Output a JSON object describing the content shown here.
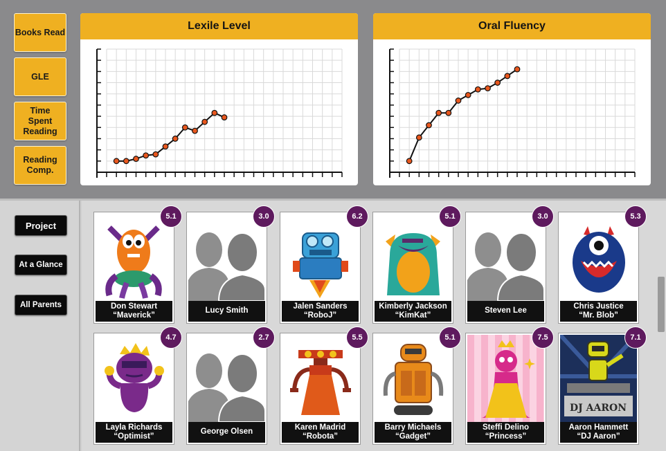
{
  "metrics": [
    {
      "label": "Books Read"
    },
    {
      "label": "GLE"
    },
    {
      "label": "Time Spent Reading"
    },
    {
      "label": "Reading Comp."
    }
  ],
  "charts": {
    "lexile": {
      "title": "Lexile Level"
    },
    "fluency": {
      "title": "Oral Fluency"
    }
  },
  "chart_data": [
    {
      "type": "line",
      "title": "Lexile Level",
      "x": [
        1,
        2,
        3,
        4,
        5,
        6,
        7,
        8,
        9,
        10,
        11,
        12
      ],
      "y": [
        1.0,
        1.0,
        1.2,
        1.5,
        1.6,
        2.3,
        3.0,
        4.0,
        3.7,
        4.5,
        5.3,
        4.9
      ],
      "ylim": [
        0,
        11
      ],
      "xlim": [
        0,
        24
      ],
      "grid": true,
      "color": "#e8571e"
    },
    {
      "type": "line",
      "title": "Oral Fluency",
      "x": [
        1,
        2,
        3,
        4,
        5,
        6,
        7,
        8,
        9,
        10,
        11,
        12
      ],
      "y": [
        1.0,
        3.1,
        4.2,
        5.3,
        5.3,
        6.4,
        6.9,
        7.4,
        7.5,
        8.0,
        8.6,
        9.2
      ],
      "ylim": [
        0,
        11
      ],
      "xlim": [
        0,
        24
      ],
      "grid": true,
      "color": "#e8571e"
    }
  ],
  "nav": [
    {
      "label": "Project"
    },
    {
      "label": "At a Glance"
    },
    {
      "label": "All Parents"
    }
  ],
  "students": [
    {
      "name": "Don Stewart",
      "nickname": "“Maverick”",
      "score": "5.1",
      "avatar": "orange-monster"
    },
    {
      "name": "Lucy Smith",
      "nickname": "",
      "score": "3.0",
      "avatar": "placeholder"
    },
    {
      "name": "Jalen Sanders",
      "nickname": "“RoboJ”",
      "score": "6.2",
      "avatar": "blue-robot"
    },
    {
      "name": "Kimberly Jackson",
      "nickname": "“KimKat”",
      "score": "5.1",
      "avatar": "teal-monster"
    },
    {
      "name": "Steven Lee",
      "nickname": "",
      "score": "3.0",
      "avatar": "placeholder"
    },
    {
      "name": "Chris Justice",
      "nickname": "“Mr. Blob”",
      "score": "5.3",
      "avatar": "navy-blob"
    },
    {
      "name": "Layla Richards",
      "nickname": "“Optimist”",
      "score": "4.7",
      "avatar": "purple-monster"
    },
    {
      "name": "George Olsen",
      "nickname": "",
      "score": "2.7",
      "avatar": "placeholder"
    },
    {
      "name": "Karen Madrid",
      "nickname": "“Robota”",
      "score": "5.5",
      "avatar": "red-robot"
    },
    {
      "name": "Barry Michaels",
      "nickname": "“Gadget”",
      "score": "5.1",
      "avatar": "orange-robot"
    },
    {
      "name": "Steffi Delino",
      "nickname": "“Princess”",
      "score": "7.5",
      "avatar": "pink-princess"
    },
    {
      "name": "Aaron Hammett",
      "nickname": "“DJ Aaron”",
      "score": "7.1",
      "avatar": "dj-robot",
      "avatar_text": "DJ AARON"
    }
  ]
}
